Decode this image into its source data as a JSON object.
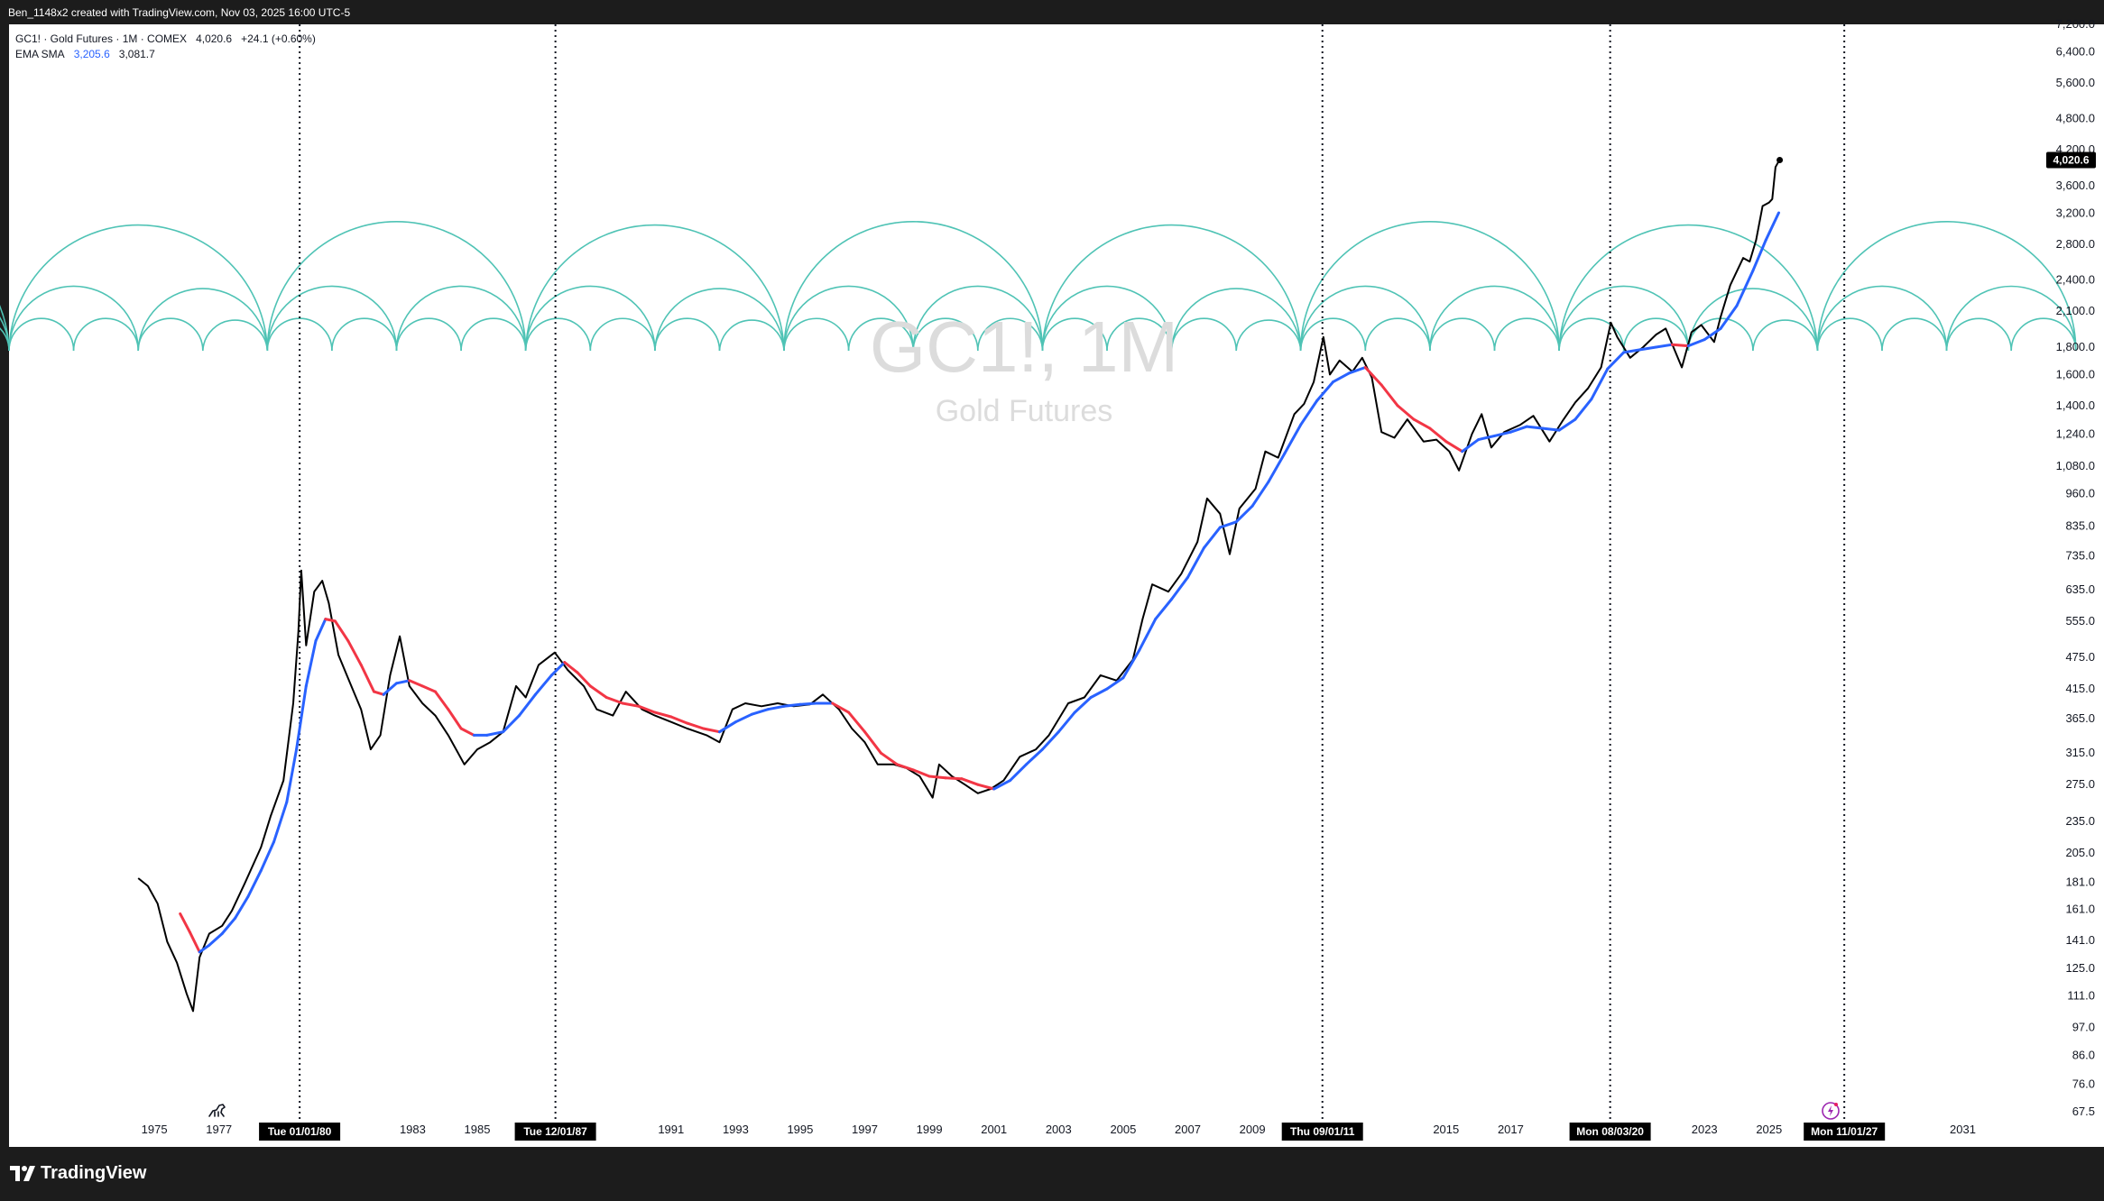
{
  "header": {
    "attribution": "Ben_1148x2 created with TradingView.com, Nov 03, 2025 16:00 UTC-5"
  },
  "legend": {
    "symbol_line": "GC1! · Gold Futures · 1M · COMEX",
    "last": "4,020.6",
    "change": "+24.1 (+0.60%)",
    "indicator_name": "EMA SMA",
    "ema_value": "3,205.6",
    "sma_value": "3,081.7"
  },
  "watermark": {
    "symbol": "GC1!, 1M",
    "name": "Gold Futures"
  },
  "footer": {
    "brand": "TradingView"
  },
  "colors": {
    "price": "#000000",
    "ema_up": "#2962ff",
    "ema_down": "#f23645",
    "arcs": "#4fc3b5",
    "marker_label_bg": "#000000",
    "background": "#ffffff",
    "frame": "#1c1c1c"
  },
  "icons": {
    "bottom_left": "dinosaur-icon",
    "bottom_right": "lightning-icon"
  },
  "chart_data": {
    "type": "line",
    "title": "GC1!, 1M",
    "subtitle": "Gold Futures",
    "y_scale": "log",
    "ylim": [
      67.5,
      7200
    ],
    "xlim": [
      1971.0,
      2034.0
    ],
    "x_ticks": [
      "1975",
      "1977",
      "1983",
      "1985",
      "1991",
      "1993",
      "1995",
      "1997",
      "1999",
      "2001",
      "2003",
      "2005",
      "2007",
      "2009",
      "2015",
      "2017",
      "2023",
      "2025",
      "2031"
    ],
    "y_ticks": [
      "7,200.0",
      "6,400.0",
      "5,600.0",
      "4,800.0",
      "4,200.0",
      "3,600.0",
      "3,200.0",
      "2,800.0",
      "2,400.0",
      "2,100.0",
      "1,800.0",
      "1,600.0",
      "1,400.0",
      "1,240.0",
      "1,080.0",
      "960.0",
      "835.0",
      "735.0",
      "635.0",
      "555.0",
      "475.0",
      "415.0",
      "365.0",
      "315.0",
      "275.0",
      "235.0",
      "205.0",
      "181.0",
      "161.0",
      "141.0",
      "125.0",
      "111.0",
      "97.0",
      "86.0",
      "76.0",
      "67.5"
    ],
    "last_price_label": "4,020.6",
    "series": [
      {
        "name": "GC1!",
        "points": [
          [
            1975.0,
            184
          ],
          [
            1975.3,
            178
          ],
          [
            1975.6,
            165
          ],
          [
            1975.9,
            140
          ],
          [
            1976.2,
            128
          ],
          [
            1976.5,
            112
          ],
          [
            1976.7,
            104
          ],
          [
            1976.9,
            131
          ],
          [
            1977.2,
            145
          ],
          [
            1977.6,
            150
          ],
          [
            1977.9,
            160
          ],
          [
            1978.3,
            180
          ],
          [
            1978.8,
            210
          ],
          [
            1979.1,
            240
          ],
          [
            1979.5,
            280
          ],
          [
            1979.8,
            390
          ],
          [
            1979.96,
            530
          ],
          [
            1980.05,
            690
          ],
          [
            1980.2,
            500
          ],
          [
            1980.45,
            630
          ],
          [
            1980.7,
            660
          ],
          [
            1980.9,
            600
          ],
          [
            1981.2,
            480
          ],
          [
            1981.6,
            420
          ],
          [
            1981.9,
            380
          ],
          [
            1982.2,
            320
          ],
          [
            1982.5,
            340
          ],
          [
            1982.8,
            440
          ],
          [
            1983.1,
            520
          ],
          [
            1983.4,
            420
          ],
          [
            1983.8,
            390
          ],
          [
            1984.2,
            370
          ],
          [
            1984.6,
            340
          ],
          [
            1985.1,
            300
          ],
          [
            1985.5,
            320
          ],
          [
            1985.9,
            330
          ],
          [
            1986.3,
            345
          ],
          [
            1986.7,
            420
          ],
          [
            1987.0,
            400
          ],
          [
            1987.4,
            460
          ],
          [
            1987.9,
            485
          ],
          [
            1988.3,
            450
          ],
          [
            1988.8,
            420
          ],
          [
            1989.2,
            380
          ],
          [
            1989.7,
            370
          ],
          [
            1990.1,
            410
          ],
          [
            1990.6,
            380
          ],
          [
            1991.0,
            370
          ],
          [
            1991.5,
            360
          ],
          [
            1992.0,
            350
          ],
          [
            1992.6,
            340
          ],
          [
            1993.0,
            330
          ],
          [
            1993.4,
            380
          ],
          [
            1993.8,
            390
          ],
          [
            1994.3,
            385
          ],
          [
            1994.8,
            390
          ],
          [
            1995.3,
            385
          ],
          [
            1995.8,
            388
          ],
          [
            1996.2,
            405
          ],
          [
            1996.7,
            380
          ],
          [
            1997.1,
            350
          ],
          [
            1997.5,
            330
          ],
          [
            1997.9,
            300
          ],
          [
            1998.4,
            300
          ],
          [
            1998.8,
            295
          ],
          [
            1999.2,
            285
          ],
          [
            1999.6,
            260
          ],
          [
            1999.8,
            300
          ],
          [
            2000.2,
            285
          ],
          [
            2000.6,
            275
          ],
          [
            2001.0,
            265
          ],
          [
            2001.4,
            270
          ],
          [
            2001.8,
            280
          ],
          [
            2002.3,
            310
          ],
          [
            2002.8,
            320
          ],
          [
            2003.2,
            340
          ],
          [
            2003.8,
            390
          ],
          [
            2004.3,
            400
          ],
          [
            2004.8,
            440
          ],
          [
            2005.3,
            430
          ],
          [
            2005.8,
            470
          ],
          [
            2006.1,
            560
          ],
          [
            2006.4,
            650
          ],
          [
            2006.9,
            630
          ],
          [
            2007.3,
            680
          ],
          [
            2007.8,
            780
          ],
          [
            2008.1,
            940
          ],
          [
            2008.5,
            880
          ],
          [
            2008.8,
            740
          ],
          [
            2009.1,
            900
          ],
          [
            2009.6,
            980
          ],
          [
            2009.9,
            1150
          ],
          [
            2010.3,
            1120
          ],
          [
            2010.8,
            1350
          ],
          [
            2011.1,
            1410
          ],
          [
            2011.4,
            1550
          ],
          [
            2011.7,
            1880
          ],
          [
            2011.9,
            1600
          ],
          [
            2012.2,
            1700
          ],
          [
            2012.6,
            1620
          ],
          [
            2012.9,
            1720
          ],
          [
            2013.2,
            1580
          ],
          [
            2013.5,
            1250
          ],
          [
            2013.9,
            1220
          ],
          [
            2014.3,
            1320
          ],
          [
            2014.8,
            1200
          ],
          [
            2015.2,
            1210
          ],
          [
            2015.6,
            1150
          ],
          [
            2015.9,
            1060
          ],
          [
            2016.3,
            1240
          ],
          [
            2016.6,
            1350
          ],
          [
            2016.9,
            1170
          ],
          [
            2017.3,
            1250
          ],
          [
            2017.8,
            1290
          ],
          [
            2018.2,
            1340
          ],
          [
            2018.7,
            1200
          ],
          [
            2019.1,
            1310
          ],
          [
            2019.5,
            1420
          ],
          [
            2019.9,
            1510
          ],
          [
            2020.3,
            1650
          ],
          [
            2020.6,
            2000
          ],
          [
            2020.8,
            1880
          ],
          [
            2021.2,
            1720
          ],
          [
            2021.6,
            1800
          ],
          [
            2022.0,
            1900
          ],
          [
            2022.3,
            1950
          ],
          [
            2022.8,
            1650
          ],
          [
            2023.1,
            1920
          ],
          [
            2023.4,
            1980
          ],
          [
            2023.8,
            1840
          ],
          [
            2024.0,
            2050
          ],
          [
            2024.3,
            2350
          ],
          [
            2024.7,
            2640
          ],
          [
            2024.9,
            2600
          ],
          [
            2025.1,
            2850
          ],
          [
            2025.3,
            3300
          ],
          [
            2025.5,
            3350
          ],
          [
            2025.6,
            3400
          ],
          [
            2025.7,
            3900
          ],
          [
            2025.8,
            4000
          ],
          [
            2025.83,
            4020.6
          ]
        ]
      },
      {
        "name": "EMA",
        "points": [
          [
            1976.3,
            158
          ],
          [
            1976.6,
            146
          ],
          [
            1976.9,
            134
          ],
          [
            1977.2,
            138
          ],
          [
            1977.6,
            145
          ],
          [
            1978.0,
            155
          ],
          [
            1978.4,
            170
          ],
          [
            1978.8,
            190
          ],
          [
            1979.2,
            215
          ],
          [
            1979.6,
            255
          ],
          [
            1979.9,
            320
          ],
          [
            1980.2,
            420
          ],
          [
            1980.5,
            510
          ],
          [
            1980.8,
            560
          ],
          [
            1981.1,
            555
          ],
          [
            1981.5,
            510
          ],
          [
            1981.9,
            460
          ],
          [
            1982.3,
            410
          ],
          [
            1982.6,
            405
          ],
          [
            1983.0,
            425
          ],
          [
            1983.4,
            430
          ],
          [
            1983.8,
            420
          ],
          [
            1984.2,
            410
          ],
          [
            1984.6,
            380
          ],
          [
            1985.0,
            350
          ],
          [
            1985.4,
            340
          ],
          [
            1985.8,
            340
          ],
          [
            1986.3,
            345
          ],
          [
            1986.8,
            370
          ],
          [
            1987.3,
            405
          ],
          [
            1987.8,
            440
          ],
          [
            1988.2,
            465
          ],
          [
            1988.6,
            445
          ],
          [
            1989.0,
            420
          ],
          [
            1989.5,
            400
          ],
          [
            1990.0,
            390
          ],
          [
            1990.5,
            385
          ],
          [
            1991.0,
            375
          ],
          [
            1991.5,
            368
          ],
          [
            1992.0,
            358
          ],
          [
            1992.5,
            350
          ],
          [
            1993.0,
            345
          ],
          [
            1993.5,
            360
          ],
          [
            1994.0,
            372
          ],
          [
            1994.5,
            380
          ],
          [
            1995.0,
            385
          ],
          [
            1995.5,
            388
          ],
          [
            1996.0,
            390
          ],
          [
            1996.5,
            390
          ],
          [
            1997.0,
            375
          ],
          [
            1997.5,
            345
          ],
          [
            1998.0,
            315
          ],
          [
            1998.5,
            300
          ],
          [
            1999.0,
            293
          ],
          [
            1999.5,
            285
          ],
          [
            2000.0,
            283
          ],
          [
            2000.5,
            282
          ],
          [
            2001.0,
            275
          ],
          [
            2001.5,
            270
          ],
          [
            2002.0,
            280
          ],
          [
            2002.5,
            300
          ],
          [
            2003.0,
            320
          ],
          [
            2003.5,
            345
          ],
          [
            2004.0,
            375
          ],
          [
            2004.5,
            400
          ],
          [
            2005.0,
            415
          ],
          [
            2005.5,
            435
          ],
          [
            2006.0,
            490
          ],
          [
            2006.5,
            560
          ],
          [
            2007.0,
            610
          ],
          [
            2007.5,
            670
          ],
          [
            2008.0,
            760
          ],
          [
            2008.5,
            830
          ],
          [
            2009.0,
            850
          ],
          [
            2009.5,
            910
          ],
          [
            2010.0,
            1010
          ],
          [
            2010.5,
            1140
          ],
          [
            2011.0,
            1290
          ],
          [
            2011.5,
            1430
          ],
          [
            2012.0,
            1550
          ],
          [
            2012.5,
            1610
          ],
          [
            2013.0,
            1650
          ],
          [
            2013.5,
            1530
          ],
          [
            2014.0,
            1400
          ],
          [
            2014.5,
            1320
          ],
          [
            2015.0,
            1270
          ],
          [
            2015.5,
            1200
          ],
          [
            2016.0,
            1150
          ],
          [
            2016.5,
            1210
          ],
          [
            2017.0,
            1230
          ],
          [
            2017.5,
            1250
          ],
          [
            2018.0,
            1280
          ],
          [
            2018.5,
            1270
          ],
          [
            2019.0,
            1260
          ],
          [
            2019.5,
            1320
          ],
          [
            2020.0,
            1440
          ],
          [
            2020.5,
            1640
          ],
          [
            2021.0,
            1760
          ],
          [
            2021.5,
            1780
          ],
          [
            2022.0,
            1800
          ],
          [
            2022.5,
            1820
          ],
          [
            2023.0,
            1810
          ],
          [
            2023.5,
            1860
          ],
          [
            2024.0,
            1950
          ],
          [
            2024.5,
            2150
          ],
          [
            2025.0,
            2500
          ],
          [
            2025.4,
            2850
          ],
          [
            2025.8,
            3205.6
          ]
        ]
      }
    ],
    "ema_down_ranges": [
      [
        1976.3,
        1977.0
      ],
      [
        1980.8,
        1982.6
      ],
      [
        1983.5,
        1985.6
      ],
      [
        1988.1,
        1993.0
      ],
      [
        1996.6,
        2001.6
      ],
      [
        2013.0,
        2016.1
      ],
      [
        2022.3,
        2022.9
      ]
    ],
    "cycle_arcs": {
      "start": 1971.0,
      "period_years": 8.0,
      "levels": [
        "full",
        "half",
        "quarter"
      ]
    },
    "markers": [
      {
        "x": 1980.0,
        "label": "Tue 01/01/80"
      },
      {
        "x": 1987.92,
        "label": "Tue 12/01/87"
      },
      {
        "x": 2011.67,
        "label": "Thu 09/01/11"
      },
      {
        "x": 2020.58,
        "label": "Mon 08/03/20"
      },
      {
        "x": 2027.83,
        "label": "Mon 11/01/27"
      }
    ]
  }
}
